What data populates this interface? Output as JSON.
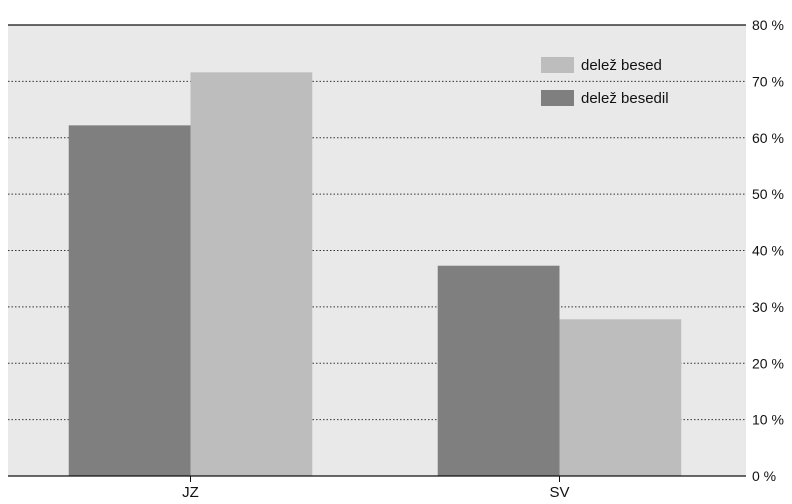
{
  "chart_data": {
    "type": "bar",
    "categories": [
      "JZ",
      "SV"
    ],
    "series": [
      {
        "name": "delež besedil",
        "values": [
          62.2,
          37.3
        ],
        "color": "#7f7f7f"
      },
      {
        "name": "delež besed",
        "values": [
          71.6,
          27.8
        ],
        "color": "#bdbdbd"
      }
    ],
    "y_ticks": [
      "0 %",
      "10 %",
      "20 %",
      "30 %",
      "40 %",
      "50 %",
      "60 %",
      "70 %",
      "80 %"
    ],
    "ylim": [
      0,
      80
    ],
    "grid": true,
    "grid_style": "dotted",
    "plot_background": "#e9e9e9",
    "y_axis_side": "right",
    "legend": {
      "placement": "top-right",
      "order": [
        "delež besed",
        "delež besedil"
      ]
    },
    "title": "",
    "xlabel": "",
    "ylabel": ""
  }
}
